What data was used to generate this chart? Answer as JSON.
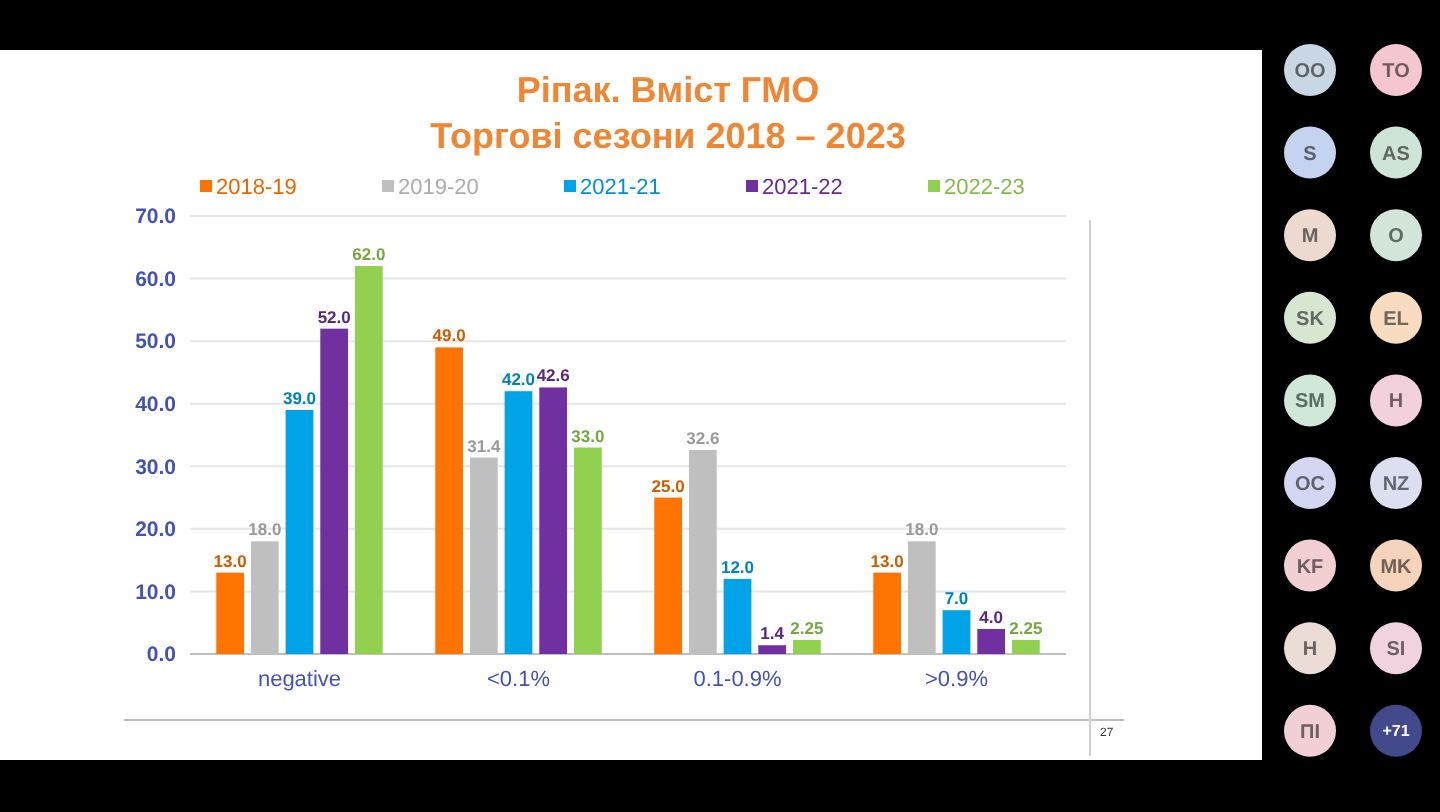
{
  "chart_data": {
    "type": "bar",
    "title": "Ріпак. Вміст ГМО",
    "subtitle": "Торгові сезони 2018 – 2023",
    "categories": [
      "negative",
      "<0.1%",
      "0.1-0.9%",
      ">0.9%"
    ],
    "series": [
      {
        "name": "2018-19",
        "color": "#ff7300",
        "values": [
          13.0,
          49.0,
          25.0,
          13.0
        ],
        "value_labels": [
          "13.0",
          "49.0",
          "25.0",
          "13.0"
        ]
      },
      {
        "name": "2019-20",
        "color": "#bfbfbf",
        "values": [
          18.0,
          31.4,
          32.6,
          18.0
        ],
        "value_labels": [
          "18.0",
          "31.4",
          "32.6",
          "18.0"
        ]
      },
      {
        "name": "2021-21",
        "color": "#00a2e8",
        "values": [
          39.0,
          42.0,
          12.0,
          7.0
        ],
        "value_labels": [
          "39.0",
          "42.0",
          "12.0",
          "7.0"
        ]
      },
      {
        "name": "2021-22",
        "color": "#7030a0",
        "values": [
          52.0,
          42.6,
          1.4,
          4.0
        ],
        "value_labels": [
          "52.0",
          "42.6",
          "1.4",
          "4.0"
        ]
      },
      {
        "name": "2022-23",
        "color": "#92d050",
        "values": [
          62.0,
          33.0,
          2.25,
          2.25
        ],
        "value_labels": [
          "62.0",
          "33.0",
          "2.25",
          "2.25"
        ]
      }
    ],
    "ylim": [
      0,
      70
    ],
    "yticks": [
      {
        "value": 0,
        "label": "0.0"
      },
      {
        "value": 10,
        "label": "10.0"
      },
      {
        "value": 20,
        "label": "20.0"
      },
      {
        "value": 30,
        "label": "30.0"
      },
      {
        "value": 40,
        "label": "40.0"
      },
      {
        "value": 50,
        "label": "50.0"
      },
      {
        "value": 60,
        "label": "60.0"
      },
      {
        "value": 70,
        "label": "70.0"
      }
    ],
    "grid": "y",
    "legend": "top",
    "annotations": [
      "27",
      "OO",
      "TO",
      "S",
      "AS",
      "M",
      "O",
      "SK",
      "EL",
      "SM",
      "H",
      "OC",
      "NZ",
      "KF",
      "MK",
      "H",
      "SI",
      "ПІ",
      "+71"
    ]
  }
}
